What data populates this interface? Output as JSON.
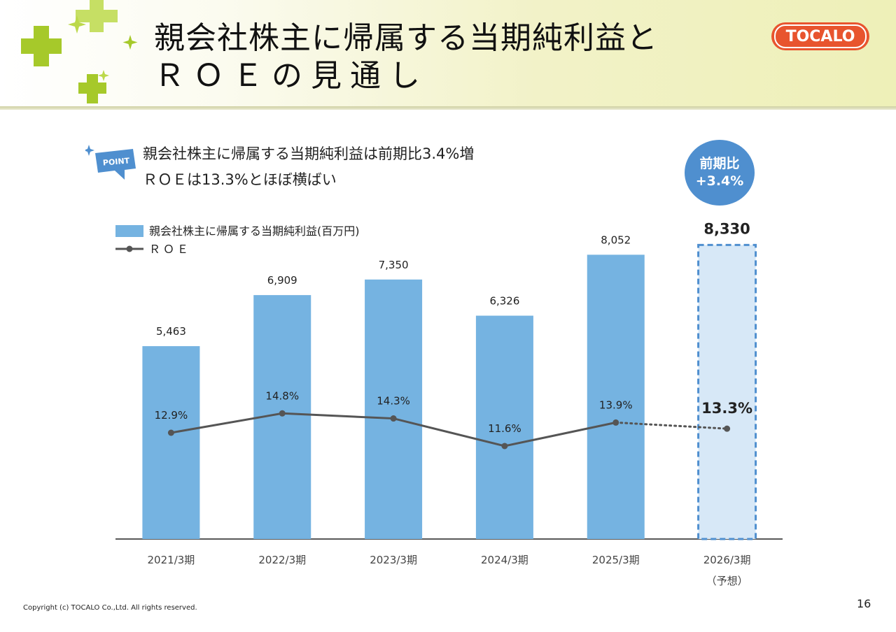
{
  "header": {
    "title_line1": "親会社株主に帰属する当期純利益と",
    "title_line2": "ＲＯＥの見通し",
    "logo_text": "TOCALO"
  },
  "point": {
    "badge_label": "POINT",
    "line1": "親会社株主に帰属する当期純利益は前期比3.4%増",
    "line2": "ＲＯＥは13.3%とほぼ横ばい"
  },
  "highlight_circle": {
    "line1": "前期比",
    "line2": "+3.4%"
  },
  "chart_data": {
    "type": "bar",
    "categories": [
      "2021/3期",
      "2022/3期",
      "2023/3期",
      "2024/3期",
      "2025/3期",
      "2026/3期"
    ],
    "category_sublabels": [
      "",
      "",
      "",
      "",
      "",
      "（予想）"
    ],
    "series": [
      {
        "name": "親会社株主に帰属する当期純利益(百万円)",
        "type": "bar",
        "values": [
          5463,
          6909,
          7350,
          6326,
          8052,
          8330
        ],
        "labels": [
          "5,463",
          "6,909",
          "7,350",
          "6,326",
          "8,052",
          "8,330"
        ]
      },
      {
        "name": "ＲＯＥ",
        "type": "line",
        "values": [
          12.9,
          14.8,
          14.3,
          11.6,
          13.9,
          13.3
        ],
        "labels": [
          "12.9%",
          "14.8%",
          "14.3%",
          "11.6%",
          "13.9%",
          "13.3%"
        ]
      }
    ],
    "forecast_index": 5,
    "legend_position": "top-left",
    "grid": false,
    "colors": {
      "bar": "#75b3e1",
      "forecast_bar_fill": "#d7e8f7",
      "forecast_bar_border": "#4f8fcf",
      "line": "#555555",
      "axis": "#595959"
    }
  },
  "footer": {
    "copyright": "Copyright (c) TOCALO Co.,Ltd. All rights reserved.",
    "page_number": "16"
  }
}
